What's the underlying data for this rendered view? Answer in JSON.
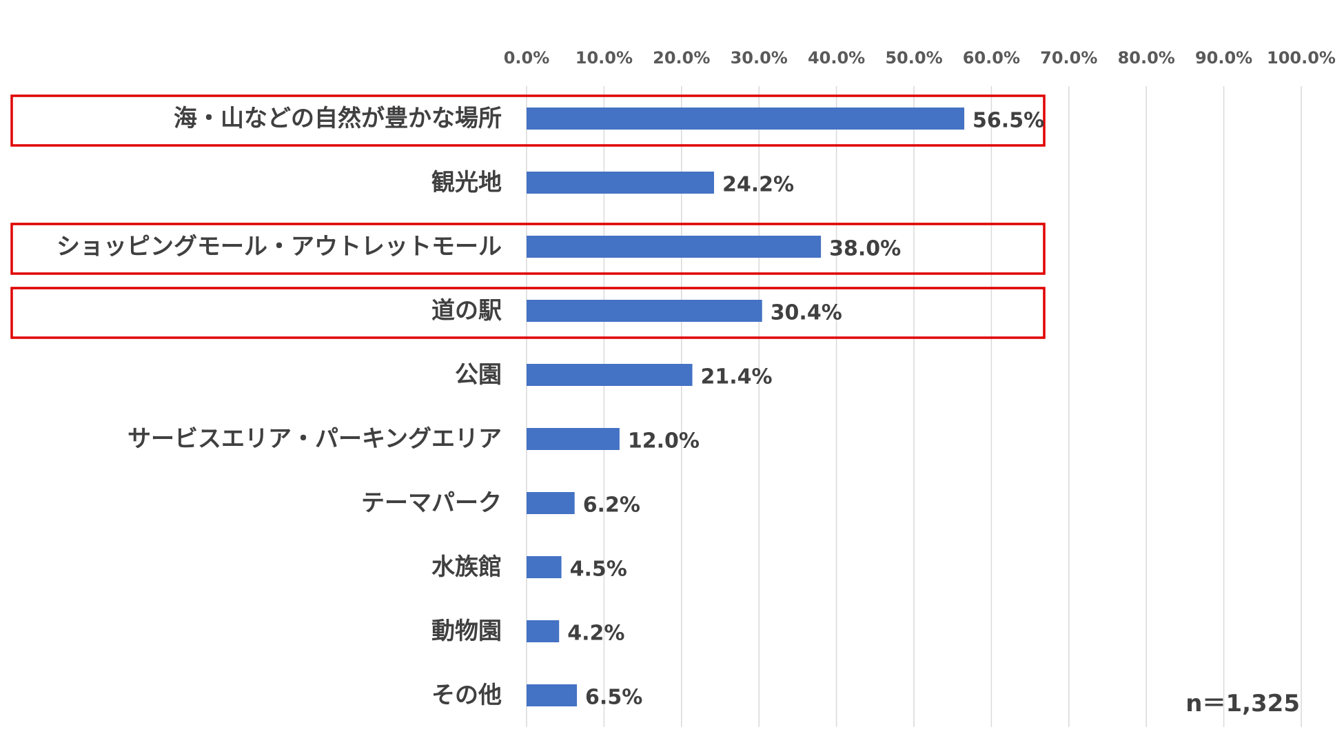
{
  "chart_data": {
    "type": "bar",
    "orientation": "horizontal",
    "categories": [
      "海・山などの自然が豊かな場所",
      "観光地",
      "ショッピングモール・アウトレットモール",
      "道の駅",
      "公園",
      "サービスエリア・パーキングエリア",
      "テーマパーク",
      "水族館",
      "動物園",
      "その他"
    ],
    "values": [
      56.5,
      24.2,
      38.0,
      30.4,
      21.4,
      12.0,
      6.2,
      4.5,
      4.2,
      6.5
    ],
    "value_labels": [
      "56.5%",
      "24.2%",
      "38.0%",
      "30.4%",
      "21.4%",
      "12.0%",
      "6.2%",
      "4.5%",
      "4.2%",
      "6.5%"
    ],
    "x_ticks": [
      "0.0%",
      "10.0%",
      "20.0%",
      "30.0%",
      "40.0%",
      "50.0%",
      "60.0%",
      "70.0%",
      "80.0%",
      "90.0%",
      "100.0%"
    ],
    "xlim": [
      0,
      100
    ],
    "x_axis_position": "top",
    "grid": true,
    "highlighted_categories": [
      0,
      2,
      3
    ],
    "note": "n＝1,325",
    "title": "",
    "xlabel": "",
    "ylabel": ""
  },
  "colors": {
    "bar": "#4472c4",
    "highlight_box": "#e00000",
    "grid": "#d9d9d9"
  }
}
